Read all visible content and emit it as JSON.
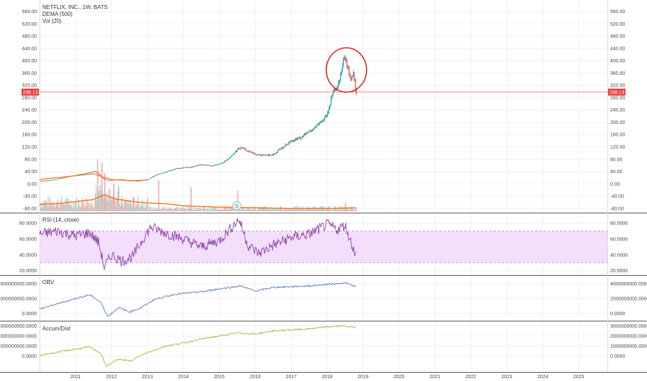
{
  "chart_data": [
    {
      "type": "candlestick",
      "title": "NETFLIX, INC., 1W, BATS",
      "legend": [
        "DEMA (500)",
        "Vol (20)"
      ],
      "y_ticks": [
        "560.00",
        "520.00",
        "480.00",
        "440.00",
        "400.00",
        "360.00",
        "320.00",
        "280.00",
        "240.00",
        "200.00",
        "160.00",
        "120.00",
        "80.00",
        "40.00",
        "0.00",
        "-40.00",
        "-80.00"
      ],
      "ylim": [
        -85,
        575
      ],
      "last_price_label": "298.13",
      "last_price": 298.13,
      "annotation": "S",
      "price_series": [
        {
          "t": 2010.0,
          "v": 8
        },
        {
          "t": 2010.25,
          "v": 11
        },
        {
          "t": 2010.5,
          "v": 16
        },
        {
          "t": 2010.75,
          "v": 22
        },
        {
          "t": 2011.0,
          "v": 28
        },
        {
          "t": 2011.25,
          "v": 33
        },
        {
          "t": 2011.5,
          "v": 40
        },
        {
          "t": 2011.6,
          "v": 38
        },
        {
          "t": 2011.75,
          "v": 18
        },
        {
          "t": 2011.9,
          "v": 10
        },
        {
          "t": 2012.0,
          "v": 12
        },
        {
          "t": 2012.25,
          "v": 14
        },
        {
          "t": 2012.5,
          "v": 10
        },
        {
          "t": 2012.75,
          "v": 9
        },
        {
          "t": 2013.0,
          "v": 14
        },
        {
          "t": 2013.25,
          "v": 30
        },
        {
          "t": 2013.5,
          "v": 38
        },
        {
          "t": 2013.75,
          "v": 48
        },
        {
          "t": 2014.0,
          "v": 52
        },
        {
          "t": 2014.25,
          "v": 55
        },
        {
          "t": 2014.5,
          "v": 62
        },
        {
          "t": 2014.75,
          "v": 58
        },
        {
          "t": 2015.0,
          "v": 64
        },
        {
          "t": 2015.25,
          "v": 80
        },
        {
          "t": 2015.5,
          "v": 112
        },
        {
          "t": 2015.6,
          "v": 120
        },
        {
          "t": 2015.75,
          "v": 108
        },
        {
          "t": 2016.0,
          "v": 96
        },
        {
          "t": 2016.25,
          "v": 92
        },
        {
          "t": 2016.5,
          "v": 96
        },
        {
          "t": 2016.75,
          "v": 118
        },
        {
          "t": 2017.0,
          "v": 140
        },
        {
          "t": 2017.25,
          "v": 150
        },
        {
          "t": 2017.5,
          "v": 170
        },
        {
          "t": 2017.75,
          "v": 192
        },
        {
          "t": 2018.0,
          "v": 225
        },
        {
          "t": 2018.15,
          "v": 300
        },
        {
          "t": 2018.3,
          "v": 320
        },
        {
          "t": 2018.45,
          "v": 410
        },
        {
          "t": 2018.55,
          "v": 385
        },
        {
          "t": 2018.65,
          "v": 340
        },
        {
          "t": 2018.72,
          "v": 365
        },
        {
          "t": 2018.8,
          "v": 298
        }
      ],
      "dema_series": [
        {
          "t": 2010.0,
          "v": 14
        },
        {
          "t": 2011.0,
          "v": 26
        },
        {
          "t": 2011.5,
          "v": 33
        },
        {
          "t": 2011.75,
          "v": 22
        },
        {
          "t": 2012.0,
          "v": 14
        },
        {
          "t": 2012.5,
          "v": 10
        },
        {
          "t": 2013.0,
          "v": 12
        }
      ]
    },
    {
      "type": "line",
      "title": "RSI (14, close)",
      "y_ticks": [
        "80.0000",
        "60.0000",
        "40.0000",
        "20.0000"
      ],
      "ylim": [
        18,
        88
      ],
      "band": [
        30,
        70
      ],
      "series": [
        {
          "t": 2010.0,
          "v": 66
        },
        {
          "t": 2010.5,
          "v": 70
        },
        {
          "t": 2011.0,
          "v": 64
        },
        {
          "t": 2011.4,
          "v": 68
        },
        {
          "t": 2011.65,
          "v": 55
        },
        {
          "t": 2011.8,
          "v": 24
        },
        {
          "t": 2012.0,
          "v": 40
        },
        {
          "t": 2012.3,
          "v": 32
        },
        {
          "t": 2012.6,
          "v": 38
        },
        {
          "t": 2012.9,
          "v": 62
        },
        {
          "t": 2013.1,
          "v": 75
        },
        {
          "t": 2013.5,
          "v": 68
        },
        {
          "t": 2014.0,
          "v": 60
        },
        {
          "t": 2014.5,
          "v": 50
        },
        {
          "t": 2015.0,
          "v": 58
        },
        {
          "t": 2015.55,
          "v": 85
        },
        {
          "t": 2015.8,
          "v": 52
        },
        {
          "t": 2016.1,
          "v": 42
        },
        {
          "t": 2016.5,
          "v": 52
        },
        {
          "t": 2017.0,
          "v": 62
        },
        {
          "t": 2017.5,
          "v": 66
        },
        {
          "t": 2018.0,
          "v": 78
        },
        {
          "t": 2018.3,
          "v": 72
        },
        {
          "t": 2018.5,
          "v": 78
        },
        {
          "t": 2018.65,
          "v": 58
        },
        {
          "t": 2018.8,
          "v": 40
        }
      ]
    },
    {
      "type": "line",
      "title": "OBV",
      "y_ticks": [
        "4000000000.0000",
        "2000000000.0000",
        "0.0000"
      ],
      "ylim": [
        -600000000,
        4600000000
      ],
      "series": [
        {
          "t": 2010.0,
          "v": 600000000
        },
        {
          "t": 2010.5,
          "v": 1300000000
        },
        {
          "t": 2011.0,
          "v": 2000000000
        },
        {
          "t": 2011.4,
          "v": 2500000000
        },
        {
          "t": 2011.7,
          "v": 1500000000
        },
        {
          "t": 2011.9,
          "v": -400000000
        },
        {
          "t": 2012.2,
          "v": 800000000
        },
        {
          "t": 2012.5,
          "v": 200000000
        },
        {
          "t": 2012.8,
          "v": 700000000
        },
        {
          "t": 2013.2,
          "v": 1900000000
        },
        {
          "t": 2013.8,
          "v": 2600000000
        },
        {
          "t": 2014.5,
          "v": 2900000000
        },
        {
          "t": 2015.0,
          "v": 3300000000
        },
        {
          "t": 2015.6,
          "v": 3700000000
        },
        {
          "t": 2016.0,
          "v": 3000000000
        },
        {
          "t": 2016.5,
          "v": 3500000000
        },
        {
          "t": 2017.0,
          "v": 3600000000
        },
        {
          "t": 2017.5,
          "v": 3700000000
        },
        {
          "t": 2018.0,
          "v": 3900000000
        },
        {
          "t": 2018.5,
          "v": 4100000000
        },
        {
          "t": 2018.8,
          "v": 3600000000
        }
      ]
    },
    {
      "type": "line",
      "title": "Accum/Dist",
      "y_ticks": [
        "3000000000.0000",
        "2000000000.0000",
        "1000000000.0000",
        "0.0000"
      ],
      "ylim": [
        -1300000000,
        3100000000
      ],
      "series": [
        {
          "t": 2010.0,
          "v": 50000000
        },
        {
          "t": 2010.5,
          "v": 400000000
        },
        {
          "t": 2011.0,
          "v": 700000000
        },
        {
          "t": 2011.4,
          "v": 900000000
        },
        {
          "t": 2011.7,
          "v": 300000000
        },
        {
          "t": 2011.85,
          "v": -1000000000
        },
        {
          "t": 2012.2,
          "v": -300000000
        },
        {
          "t": 2012.5,
          "v": -500000000
        },
        {
          "t": 2012.9,
          "v": 200000000
        },
        {
          "t": 2013.5,
          "v": 1000000000
        },
        {
          "t": 2014.0,
          "v": 1300000000
        },
        {
          "t": 2014.5,
          "v": 1700000000
        },
        {
          "t": 2015.0,
          "v": 2000000000
        },
        {
          "t": 2015.5,
          "v": 2300000000
        },
        {
          "t": 2016.0,
          "v": 2200000000
        },
        {
          "t": 2016.5,
          "v": 2500000000
        },
        {
          "t": 2017.0,
          "v": 2600000000
        },
        {
          "t": 2017.5,
          "v": 2700000000
        },
        {
          "t": 2018.0,
          "v": 2900000000
        },
        {
          "t": 2018.4,
          "v": 3000000000
        },
        {
          "t": 2018.8,
          "v": 2850000000
        }
      ]
    }
  ],
  "x_axis": {
    "labels": [
      "2011",
      "2012",
      "2013",
      "2014",
      "2015",
      "2016",
      "2017",
      "2018",
      "2019",
      "2020",
      "2021",
      "2022",
      "2023",
      "2024",
      "2025"
    ],
    "ticks": [
      2011,
      2012,
      2013,
      2014,
      2015,
      2016,
      2017,
      2018,
      2019,
      2020,
      2021,
      2022,
      2023,
      2024,
      2025
    ],
    "xlim": [
      2010.0,
      2025.8
    ]
  },
  "colors": {
    "up": "#26a69a",
    "down": "#ef5350",
    "dema": "#f57c20",
    "rsi": "#8e3fa8",
    "rsi_band": "#f0d7fa",
    "obv": "#5c7bb5",
    "ad": "#a9b83e",
    "price_line": "#e84040",
    "circle": "#e02020"
  }
}
